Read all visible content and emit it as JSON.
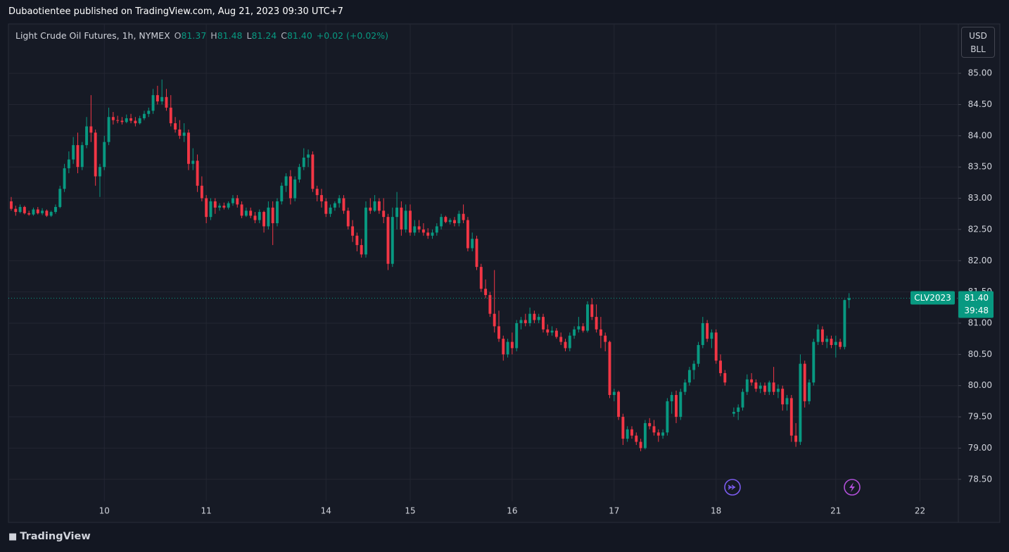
{
  "header": {
    "published": "Dubaotientee published on TradingView.com, Aug 21, 2023 09:30 UTC+7"
  },
  "footer": {
    "brand": "TradingView"
  },
  "chart_data": {
    "type": "candlestick",
    "title": "Light Crude Oil Futures, 1h, NYMEX",
    "legend": [
      {
        "label": "O",
        "value": "81.37"
      },
      {
        "label": "H",
        "value": "81.48"
      },
      {
        "label": "L",
        "value": "81.24"
      },
      {
        "label": "C",
        "value": "81.40"
      }
    ],
    "change": "+0.02 (+0.02%)",
    "currency": "USD",
    "unit": "BLL",
    "symbol_tag": "CLV2023",
    "last_price": "81.40",
    "countdown": "39:48",
    "up_color": "#089981",
    "down_color": "#f23645",
    "grid": true,
    "xlim": [
      -0.63,
      213.65
    ],
    "xticks": [
      {
        "value": 21,
        "label": "10"
      },
      {
        "value": 44,
        "label": "11"
      },
      {
        "value": 71,
        "label": "14"
      },
      {
        "value": 90,
        "label": "15"
      },
      {
        "value": 113,
        "label": "16"
      },
      {
        "value": 136,
        "label": "17"
      },
      {
        "value": 159,
        "label": "18"
      },
      {
        "value": 186,
        "label": "21"
      },
      {
        "value": 205,
        "label": "22"
      }
    ],
    "ylim": [
      77.81,
      85.79
    ],
    "yticks": [
      {
        "value": 78.5,
        "label": "78.50"
      },
      {
        "value": 79,
        "label": "79.00"
      },
      {
        "value": 79.5,
        "label": "79.50"
      },
      {
        "value": 80,
        "label": "80.00"
      },
      {
        "value": 80.5,
        "label": "80.50"
      },
      {
        "value": 81,
        "label": "81.00"
      },
      {
        "value": 81.5,
        "label": "81.50"
      },
      {
        "value": 82,
        "label": "82.00"
      },
      {
        "value": 82.5,
        "label": "82.50"
      },
      {
        "value": 83,
        "label": "83.00"
      },
      {
        "value": 83.5,
        "label": "83.50"
      },
      {
        "value": 84,
        "label": "84.00"
      },
      {
        "value": 84.5,
        "label": "84.50"
      },
      {
        "value": 85,
        "label": "85.00"
      }
    ],
    "ohlc": [
      [
        82.95,
        83.02,
        82.8,
        82.83
      ],
      [
        82.83,
        82.88,
        82.72,
        82.78
      ],
      [
        82.78,
        82.9,
        82.76,
        82.86
      ],
      [
        82.86,
        82.88,
        82.74,
        82.76
      ],
      [
        82.76,
        82.8,
        82.72,
        82.74
      ],
      [
        82.74,
        82.85,
        82.72,
        82.82
      ],
      [
        82.82,
        82.86,
        82.74,
        82.76
      ],
      [
        82.76,
        82.84,
        82.73,
        82.8
      ],
      [
        82.8,
        82.82,
        82.7,
        82.72
      ],
      [
        82.72,
        82.8,
        82.7,
        82.78
      ],
      [
        82.78,
        82.9,
        82.75,
        82.86
      ],
      [
        82.86,
        83.2,
        82.84,
        83.15
      ],
      [
        83.15,
        83.55,
        83.1,
        83.48
      ],
      [
        83.48,
        83.75,
        83.4,
        83.62
      ],
      [
        83.62,
        83.98,
        83.55,
        83.85
      ],
      [
        83.85,
        84.05,
        83.4,
        83.5
      ],
      [
        83.5,
        83.9,
        83.45,
        83.85
      ],
      [
        83.85,
        84.3,
        83.8,
        84.15
      ],
      [
        84.15,
        84.65,
        83.9,
        84.05
      ],
      [
        84.05,
        84.1,
        83.2,
        83.35
      ],
      [
        83.35,
        83.55,
        83.02,
        83.5
      ],
      [
        83.5,
        84.0,
        83.45,
        83.9
      ],
      [
        83.9,
        84.45,
        83.85,
        84.3
      ],
      [
        84.3,
        84.38,
        84.18,
        84.25
      ],
      [
        84.25,
        84.32,
        84.2,
        84.24
      ],
      [
        84.24,
        84.3,
        84.18,
        84.22
      ],
      [
        84.22,
        84.34,
        84.2,
        84.28
      ],
      [
        84.28,
        84.35,
        84.2,
        84.24
      ],
      [
        84.24,
        84.3,
        84.15,
        84.2
      ],
      [
        84.2,
        84.32,
        84.18,
        84.28
      ],
      [
        84.28,
        84.4,
        84.25,
        84.35
      ],
      [
        84.35,
        84.45,
        84.3,
        84.4
      ],
      [
        84.4,
        84.75,
        84.35,
        84.65
      ],
      [
        84.65,
        84.8,
        84.5,
        84.55
      ],
      [
        84.55,
        84.9,
        84.5,
        84.62
      ],
      [
        84.62,
        84.75,
        84.4,
        84.45
      ],
      [
        84.45,
        84.65,
        84.15,
        84.2
      ],
      [
        84.2,
        84.3,
        84.05,
        84.1
      ],
      [
        84.1,
        84.25,
        83.95,
        84.0
      ],
      [
        84.0,
        84.2,
        83.9,
        84.05
      ],
      [
        84.05,
        84.1,
        83.45,
        83.55
      ],
      [
        83.55,
        83.8,
        83.45,
        83.6
      ],
      [
        83.6,
        83.7,
        83.1,
        83.2
      ],
      [
        83.2,
        83.35,
        82.95,
        83.0
      ],
      [
        83.0,
        83.05,
        82.6,
        82.7
      ],
      [
        82.7,
        83.0,
        82.65,
        82.95
      ],
      [
        82.95,
        83.0,
        82.75,
        82.85
      ],
      [
        82.85,
        82.92,
        82.8,
        82.88
      ],
      [
        82.88,
        82.93,
        82.82,
        82.85
      ],
      [
        82.85,
        82.95,
        82.82,
        82.92
      ],
      [
        82.92,
        83.05,
        82.88,
        83.0
      ],
      [
        83.0,
        83.05,
        82.85,
        82.9
      ],
      [
        82.9,
        82.95,
        82.68,
        82.72
      ],
      [
        82.72,
        82.85,
        82.7,
        82.8
      ],
      [
        82.8,
        82.85,
        82.68,
        82.72
      ],
      [
        82.72,
        82.78,
        82.6,
        82.65
      ],
      [
        82.65,
        82.82,
        82.6,
        82.78
      ],
      [
        82.78,
        82.8,
        82.45,
        82.55
      ],
      [
        82.55,
        82.95,
        82.5,
        82.85
      ],
      [
        82.85,
        82.95,
        82.25,
        82.6
      ],
      [
        82.6,
        83.0,
        82.55,
        82.95
      ],
      [
        82.95,
        83.25,
        82.9,
        83.2
      ],
      [
        83.2,
        83.4,
        83.1,
        83.35
      ],
      [
        83.35,
        83.45,
        82.9,
        83.0
      ],
      [
        83.0,
        83.35,
        82.95,
        83.3
      ],
      [
        83.3,
        83.55,
        83.25,
        83.5
      ],
      [
        83.5,
        83.8,
        83.45,
        83.65
      ],
      [
        83.65,
        83.78,
        83.5,
        83.7
      ],
      [
        83.7,
        83.75,
        83.1,
        83.15
      ],
      [
        83.15,
        83.2,
        82.95,
        83.05
      ],
      [
        83.05,
        83.15,
        82.85,
        82.95
      ],
      [
        82.95,
        83.0,
        82.7,
        82.75
      ],
      [
        82.75,
        82.9,
        82.7,
        82.85
      ],
      [
        82.85,
        82.95,
        82.8,
        82.92
      ],
      [
        82.92,
        83.05,
        82.85,
        83.0
      ],
      [
        83.0,
        83.05,
        82.75,
        82.8
      ],
      [
        82.8,
        82.85,
        82.5,
        82.55
      ],
      [
        82.55,
        82.65,
        82.3,
        82.4
      ],
      [
        82.4,
        82.45,
        82.15,
        82.25
      ],
      [
        82.25,
        82.35,
        82.05,
        82.1
      ],
      [
        82.1,
        82.95,
        82.05,
        82.85
      ],
      [
        82.85,
        83.0,
        82.75,
        82.8
      ],
      [
        82.8,
        83.05,
        82.78,
        82.95
      ],
      [
        82.95,
        83.0,
        82.75,
        82.8
      ],
      [
        82.8,
        83.0,
        82.6,
        82.7
      ],
      [
        82.7,
        82.75,
        81.85,
        81.95
      ],
      [
        81.95,
        82.85,
        81.9,
        82.7
      ],
      [
        82.7,
        83.1,
        82.5,
        82.85
      ],
      [
        82.85,
        82.95,
        82.4,
        82.5
      ],
      [
        82.5,
        82.9,
        82.45,
        82.8
      ],
      [
        82.8,
        82.9,
        82.4,
        82.45
      ],
      [
        82.45,
        82.65,
        82.4,
        82.55
      ],
      [
        82.55,
        82.65,
        82.45,
        82.5
      ],
      [
        82.5,
        82.6,
        82.4,
        82.45
      ],
      [
        82.45,
        82.52,
        82.35,
        82.4
      ],
      [
        82.4,
        82.5,
        82.35,
        82.45
      ],
      [
        82.45,
        82.6,
        82.4,
        82.55
      ],
      [
        82.55,
        82.75,
        82.5,
        82.7
      ],
      [
        82.7,
        82.72,
        82.6,
        82.62
      ],
      [
        82.62,
        82.68,
        82.58,
        82.65
      ],
      [
        82.65,
        82.7,
        82.55,
        82.6
      ],
      [
        82.6,
        82.8,
        82.55,
        82.75
      ],
      [
        82.75,
        82.9,
        82.6,
        82.65
      ],
      [
        82.65,
        82.7,
        82.15,
        82.2
      ],
      [
        82.2,
        82.45,
        82.15,
        82.35
      ],
      [
        82.35,
        82.4,
        81.85,
        81.9
      ],
      [
        81.9,
        81.95,
        81.5,
        81.55
      ],
      [
        81.55,
        81.7,
        81.4,
        81.45
      ],
      [
        81.45,
        81.5,
        81.1,
        81.15
      ],
      [
        81.15,
        81.85,
        80.85,
        80.95
      ],
      [
        80.95,
        81.2,
        80.7,
        80.75
      ],
      [
        80.75,
        80.8,
        80.4,
        80.5
      ],
      [
        80.5,
        80.75,
        80.45,
        80.7
      ],
      [
        80.7,
        80.85,
        80.5,
        80.6
      ],
      [
        80.6,
        81.05,
        80.55,
        81.0
      ],
      [
        81.0,
        81.1,
        80.9,
        81.05
      ],
      [
        81.05,
        81.15,
        80.95,
        81.0
      ],
      [
        81.0,
        81.25,
        80.95,
        81.15
      ],
      [
        81.15,
        81.2,
        81.0,
        81.05
      ],
      [
        81.05,
        81.15,
        81.0,
        81.1
      ],
      [
        81.1,
        81.15,
        80.85,
        80.9
      ],
      [
        80.9,
        80.98,
        80.8,
        80.85
      ],
      [
        80.85,
        80.95,
        80.8,
        80.88
      ],
      [
        80.88,
        80.92,
        80.75,
        80.78
      ],
      [
        80.78,
        80.85,
        80.65,
        80.7
      ],
      [
        80.7,
        80.75,
        80.55,
        80.6
      ],
      [
        80.6,
        80.85,
        80.55,
        80.8
      ],
      [
        80.8,
        80.95,
        80.75,
        80.9
      ],
      [
        80.9,
        81.1,
        80.85,
        80.95
      ],
      [
        80.95,
        81.0,
        80.85,
        80.88
      ],
      [
        80.88,
        81.35,
        80.85,
        81.3
      ],
      [
        81.3,
        81.4,
        81.05,
        81.1
      ],
      [
        81.1,
        81.3,
        80.85,
        80.9
      ],
      [
        80.9,
        81.1,
        80.6,
        80.8
      ],
      [
        80.8,
        80.85,
        80.55,
        80.7
      ],
      [
        80.7,
        80.72,
        79.8,
        79.85
      ],
      [
        79.85,
        79.95,
        79.75,
        79.9
      ],
      [
        79.9,
        79.92,
        79.45,
        79.5
      ],
      [
        79.5,
        79.55,
        79.05,
        79.15
      ],
      [
        79.15,
        79.35,
        79.1,
        79.3
      ],
      [
        79.3,
        79.35,
        79.15,
        79.2
      ],
      [
        79.2,
        79.25,
        79.05,
        79.1
      ],
      [
        79.1,
        79.15,
        78.95,
        79.0
      ],
      [
        79.0,
        79.45,
        78.98,
        79.4
      ],
      [
        79.4,
        79.48,
        79.3,
        79.35
      ],
      [
        79.35,
        79.45,
        79.2,
        79.25
      ],
      [
        79.25,
        79.3,
        79.1,
        79.2
      ],
      [
        79.2,
        79.3,
        79.15,
        79.25
      ],
      [
        79.25,
        79.8,
        79.2,
        79.75
      ],
      [
        79.75,
        79.9,
        79.55,
        79.85
      ],
      [
        79.85,
        79.92,
        79.4,
        79.5
      ],
      [
        79.5,
        79.95,
        79.45,
        79.9
      ],
      [
        79.9,
        80.1,
        79.85,
        80.05
      ],
      [
        80.05,
        80.3,
        80.0,
        80.25
      ],
      [
        80.25,
        80.4,
        80.1,
        80.35
      ],
      [
        80.35,
        80.7,
        80.3,
        80.65
      ],
      [
        80.65,
        81.1,
        80.6,
        81.0
      ],
      [
        81.0,
        81.05,
        80.7,
        80.75
      ],
      [
        80.75,
        80.9,
        80.6,
        80.85
      ],
      [
        80.85,
        80.9,
        80.35,
        80.4
      ],
      [
        80.4,
        80.5,
        80.15,
        80.2
      ],
      [
        80.2,
        80.25,
        80.0,
        80.05
      ],
      null,
      [
        79.55,
        79.65,
        79.5,
        79.58
      ],
      [
        79.58,
        79.7,
        79.45,
        79.65
      ],
      [
        79.65,
        79.95,
        79.6,
        79.9
      ],
      [
        79.9,
        80.18,
        79.85,
        80.1
      ],
      [
        80.1,
        80.2,
        80.0,
        80.05
      ],
      [
        80.05,
        80.1,
        79.9,
        79.95
      ],
      [
        79.95,
        80.05,
        79.88,
        80.0
      ],
      [
        80.0,
        80.05,
        79.85,
        79.9
      ],
      [
        79.9,
        80.08,
        79.85,
        80.05
      ],
      [
        80.05,
        80.3,
        79.85,
        79.9
      ],
      [
        79.9,
        80.02,
        79.8,
        79.95
      ],
      [
        79.95,
        80.0,
        79.6,
        79.7
      ],
      [
        79.7,
        79.85,
        79.6,
        79.8
      ],
      [
        79.8,
        79.85,
        79.1,
        79.2
      ],
      [
        79.2,
        79.4,
        79.02,
        79.1
      ],
      [
        79.1,
        80.5,
        79.05,
        80.35
      ],
      [
        80.35,
        80.4,
        79.65,
        79.75
      ],
      [
        79.75,
        80.1,
        79.7,
        80.05
      ],
      [
        80.05,
        80.75,
        80.0,
        80.7
      ],
      [
        80.7,
        80.98,
        80.65,
        80.9
      ],
      [
        80.9,
        80.95,
        80.65,
        80.7
      ],
      [
        80.7,
        80.8,
        80.6,
        80.75
      ],
      [
        80.75,
        80.8,
        80.6,
        80.65
      ],
      [
        80.65,
        80.8,
        80.45,
        80.7
      ],
      [
        80.7,
        80.75,
        80.58,
        80.62
      ],
      [
        80.62,
        81.38,
        80.58,
        81.37
      ],
      [
        81.37,
        81.48,
        81.24,
        81.4
      ]
    ]
  }
}
